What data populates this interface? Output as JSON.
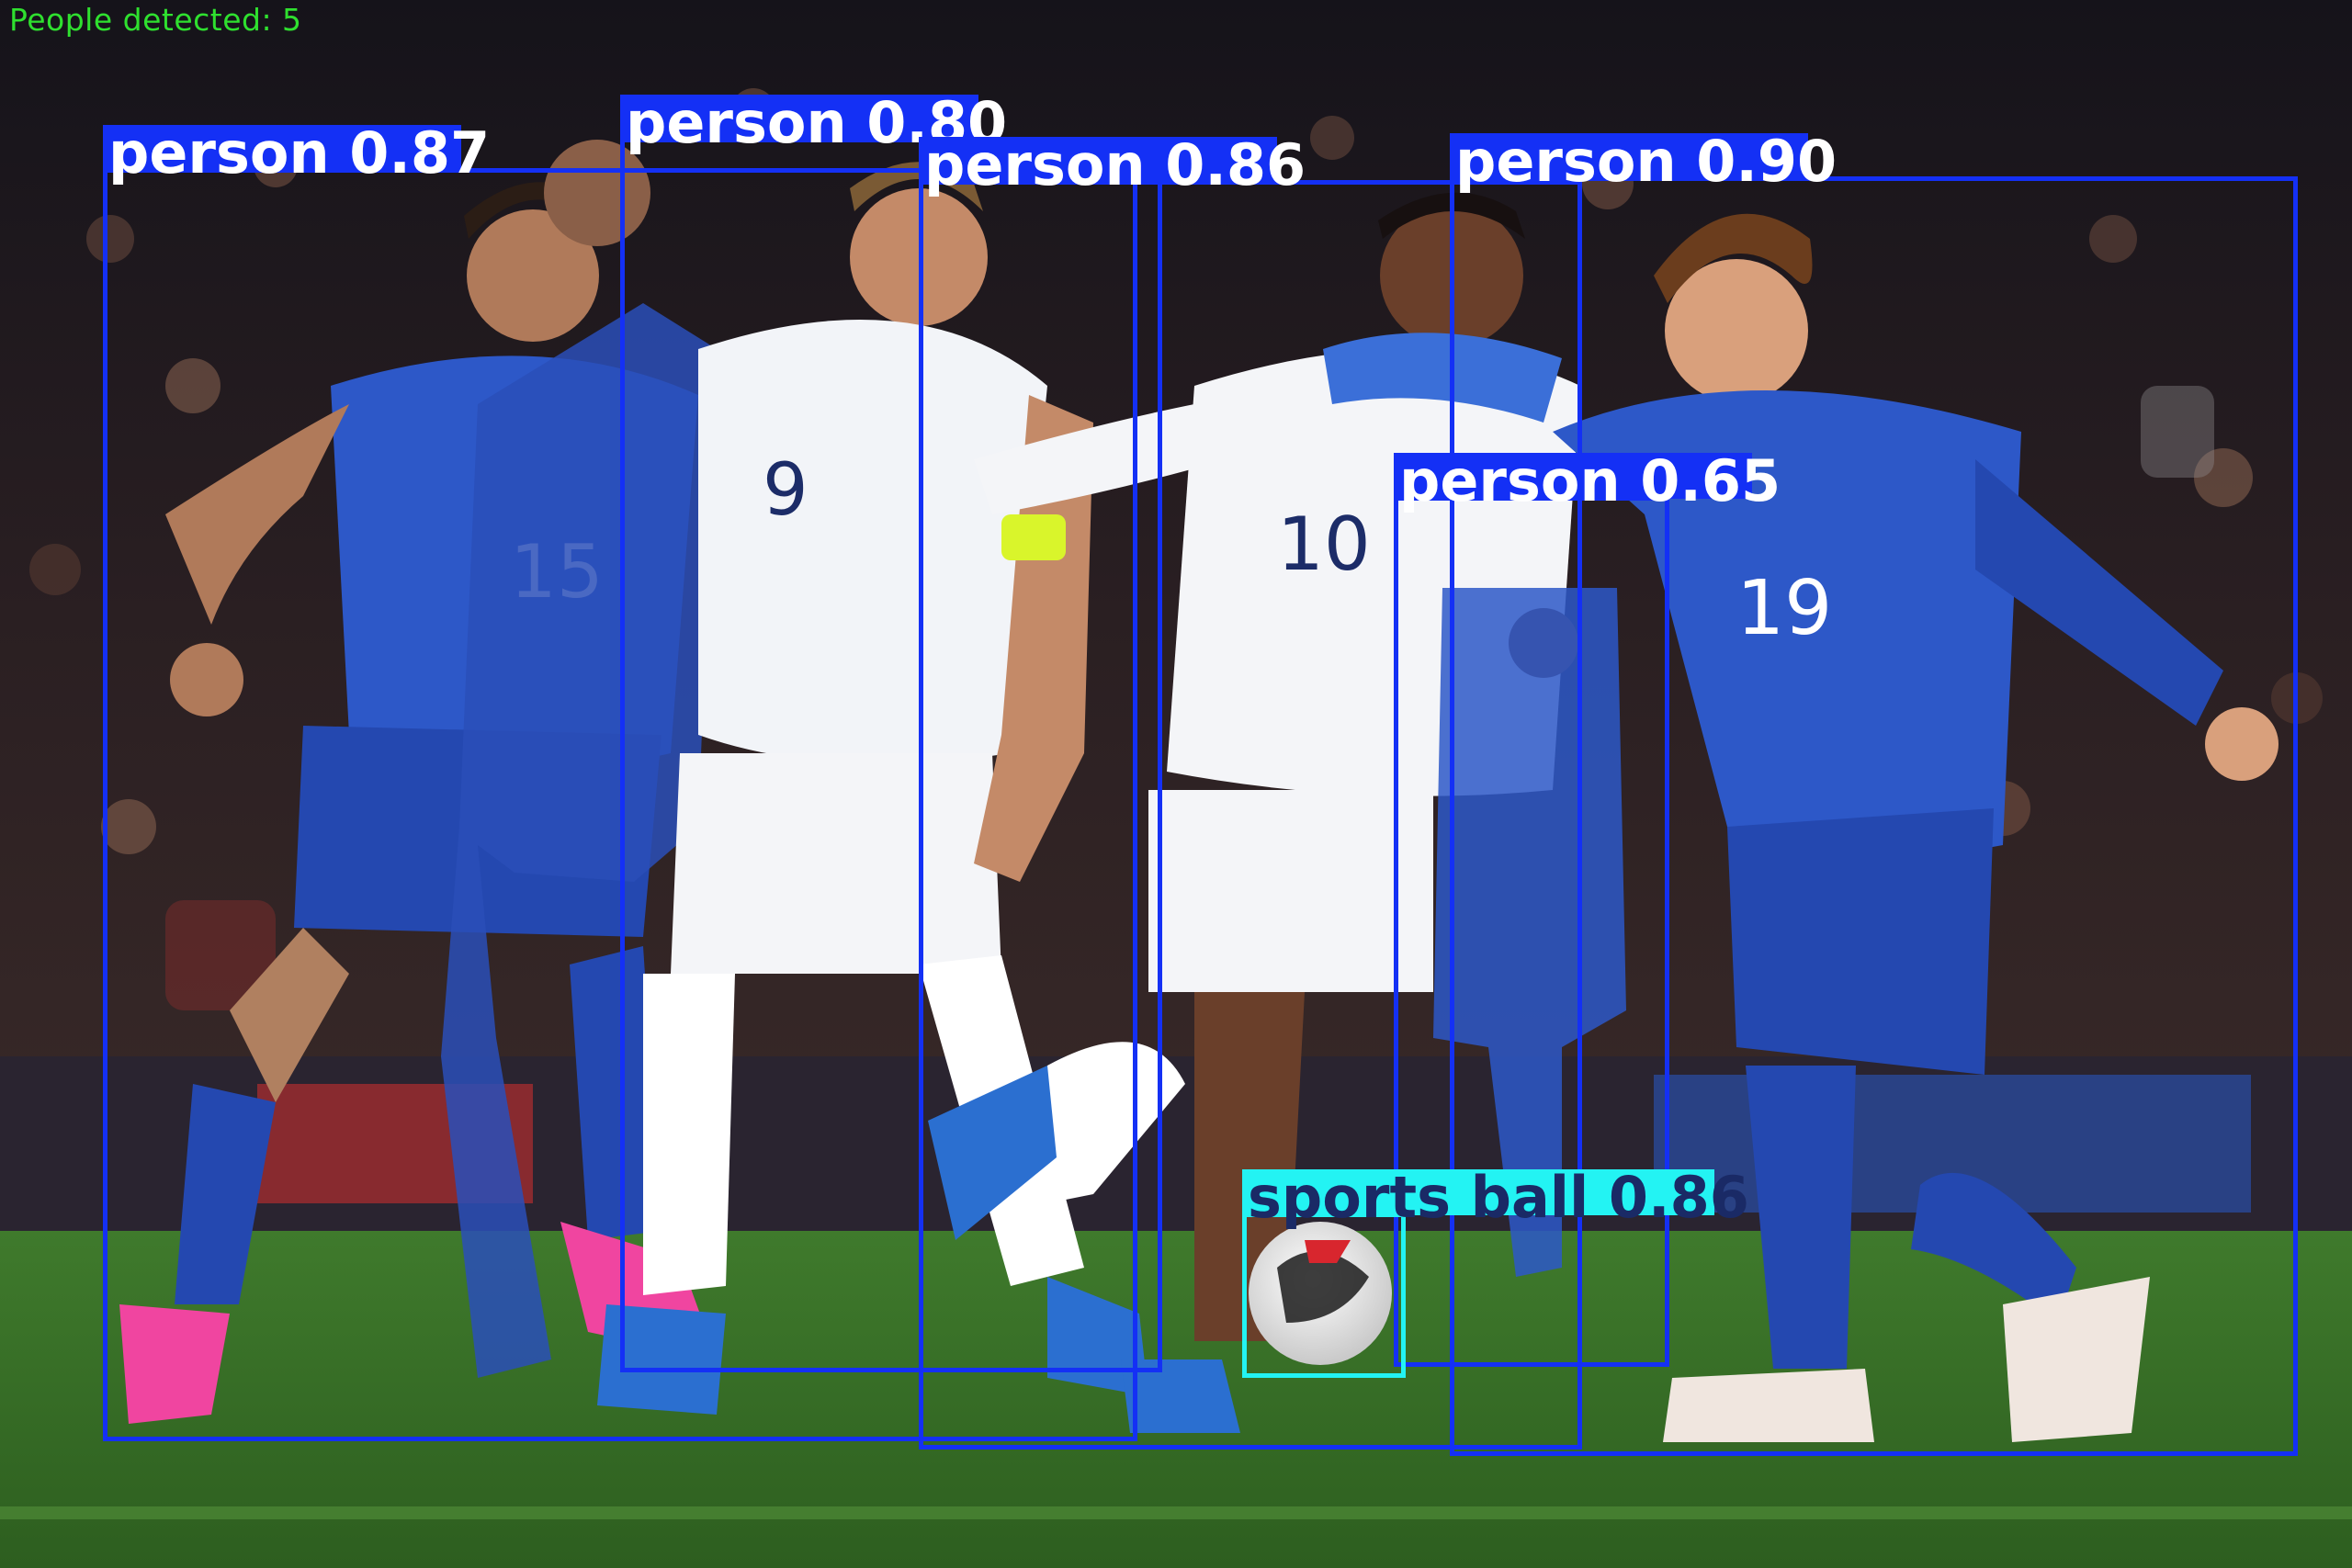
{
  "overlay": {
    "people_count_text": "People detected: 5"
  },
  "colors": {
    "person_box": "#1430f5",
    "person_label_text": "#ffffff",
    "ball_box": "#23f3f3",
    "ball_label_text": "#1a2a66",
    "count_text": "#2fe02f"
  },
  "detections": [
    {
      "id": "person-1",
      "class": "person",
      "confidence": "0.87",
      "label": "person 0.87"
    },
    {
      "id": "person-2",
      "class": "person",
      "confidence": "0.80",
      "label": "person 0.80"
    },
    {
      "id": "person-3",
      "class": "person",
      "confidence": "0.86",
      "label": "person 0.86"
    },
    {
      "id": "person-4",
      "class": "person",
      "confidence": "0.90",
      "label": "person 0.90"
    },
    {
      "id": "person-5",
      "class": "person",
      "confidence": "0.65",
      "label": "person 0.65"
    },
    {
      "id": "ball-1",
      "class": "sports ball",
      "confidence": "0.86",
      "label": "sports ball 0.86"
    }
  ]
}
